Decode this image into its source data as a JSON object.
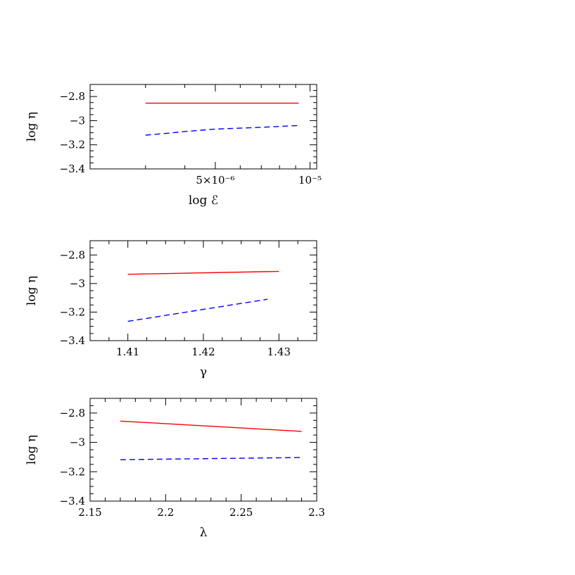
{
  "chart_data": [
    {
      "type": "line",
      "xlabel": "log ℰ",
      "ylabel": "log η",
      "x_scale": "log",
      "xlim": [
        2e-06,
        1.05e-05
      ],
      "ylim": [
        -3.4,
        -2.7
      ],
      "xticks_major": [
        5e-06,
        1e-05
      ],
      "xtick_labels": [
        "5×10⁻⁶",
        "10⁻⁵"
      ],
      "xticks_minor": [
        2e-06,
        3e-06,
        4e-06,
        6e-06,
        7e-06,
        8e-06,
        9e-06
      ],
      "yticks_major": [
        -3.4,
        -3.2,
        -3.0,
        -2.8
      ],
      "ytick_labels": [
        "−3.4",
        "−3.2",
        "−3",
        "−2.8"
      ],
      "yticks_minor": [
        -3.35,
        -3.3,
        -3.25,
        -3.15,
        -3.1,
        -3.05,
        -2.95,
        -2.9,
        -2.85,
        -2.75
      ],
      "series": [
        {
          "style": "solid",
          "color": "#ff0000",
          "x": [
            3e-06,
            4e-06,
            5e-06,
            6e-06,
            7e-06,
            8e-06,
            9.2e-06
          ],
          "y": [
            -2.855,
            -2.855,
            -2.855,
            -2.855,
            -2.855,
            -2.855,
            -2.855
          ]
        },
        {
          "style": "dashed",
          "color": "#0000ff",
          "x": [
            3e-06,
            3.5e-06,
            4e-06,
            5e-06,
            6e-06,
            7e-06,
            8e-06,
            9.2e-06
          ],
          "y": [
            -3.12,
            -3.105,
            -3.09,
            -3.07,
            -3.062,
            -3.055,
            -3.048,
            -3.04
          ]
        }
      ]
    },
    {
      "type": "line",
      "xlabel": "γ",
      "ylabel": "log η",
      "xlim": [
        1.405,
        1.435
      ],
      "ylim": [
        -3.4,
        -2.7
      ],
      "xticks_major": [
        1.41,
        1.42,
        1.43
      ],
      "xtick_labels": [
        "1.41",
        "1.42",
        "1.43"
      ],
      "xticks_minor": [
        1.405,
        1.4075,
        1.4125,
        1.415,
        1.4175,
        1.4225,
        1.425,
        1.4275,
        1.4325,
        1.435
      ],
      "yticks_major": [
        -3.4,
        -3.2,
        -3.0,
        -2.8
      ],
      "ytick_labels": [
        "−3.4",
        "−3.2",
        "−3",
        "−2.8"
      ],
      "yticks_minor": [
        -3.35,
        -3.3,
        -3.25,
        -3.15,
        -3.1,
        -3.05,
        -2.95,
        -2.9,
        -2.85,
        -2.75
      ],
      "series": [
        {
          "style": "solid",
          "color": "#ff0000",
          "x": [
            1.41,
            1.43
          ],
          "y": [
            -2.935,
            -2.915
          ]
        },
        {
          "style": "dashed",
          "color": "#0000ff",
          "x": [
            1.41,
            1.4285
          ],
          "y": [
            -3.265,
            -3.11
          ]
        }
      ]
    },
    {
      "type": "line",
      "xlabel": "λ",
      "ylabel": "log η",
      "xlim": [
        2.15,
        2.3
      ],
      "ylim": [
        -3.4,
        -2.7
      ],
      "xticks_major": [
        2.15,
        2.2,
        2.25,
        2.3
      ],
      "xtick_labels": [
        "2.15",
        "2.2",
        "2.25",
        "2.3"
      ],
      "xticks_minor": [
        2.16,
        2.17,
        2.18,
        2.19,
        2.21,
        2.22,
        2.23,
        2.24,
        2.26,
        2.27,
        2.28,
        2.29
      ],
      "yticks_major": [
        -3.4,
        -3.2,
        -3.0,
        -2.8
      ],
      "ytick_labels": [
        "−3.4",
        "−3.2",
        "−3",
        "−2.8"
      ],
      "yticks_minor": [
        -3.35,
        -3.3,
        -3.25,
        -3.15,
        -3.1,
        -3.05,
        -2.95,
        -2.9,
        -2.85,
        -2.75
      ],
      "series": [
        {
          "style": "solid",
          "color": "#ff0000",
          "x": [
            2.17,
            2.29
          ],
          "y": [
            -2.855,
            -2.925
          ]
        },
        {
          "style": "dashed",
          "color": "#0000ff",
          "x": [
            2.17,
            2.2,
            2.25,
            2.29
          ],
          "y": [
            -3.118,
            -3.114,
            -3.108,
            -3.103
          ]
        }
      ]
    }
  ]
}
